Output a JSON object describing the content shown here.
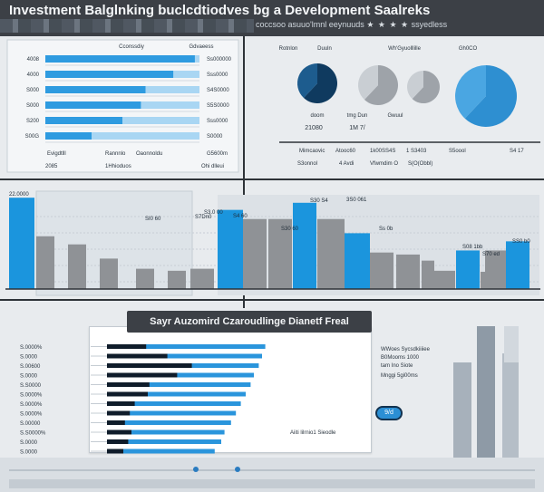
{
  "header": {
    "title": "Investment Balglnking buclcdtiodves bg a Development Saalreks",
    "subtitle": "coccsoo asuuo'lmnl eeynuuds",
    "subtitle_tail": "ssyedless",
    "stars": "★ ★ ★ ★"
  },
  "panel_a": {
    "col_headers": [
      "Cconssdiy",
      "Gdvaeess"
    ],
    "footer_labels": [
      "Evigdtlll",
      "Rannnlo",
      "Oaonnoldu",
      "G5600m"
    ],
    "footer_values": [
      "2085",
      "1Hhioduos",
      "Ohi dlleui"
    ]
  },
  "panel_b": {
    "col_headers": [
      "Rotnlon",
      "Duuln",
      "Wh'Gyuolllille",
      "Gh0CO"
    ],
    "pie_labels": [
      "doom",
      "tmg  Dun",
      "Gwuul"
    ],
    "pie_values": [
      "21080",
      "1M 7/"
    ],
    "row1": [
      "Mimcaovic",
      "Atooc60",
      "1k00SS4S",
      "1 S3403",
      "S5oool",
      "S4 17"
    ],
    "row2": [
      "S3onnol",
      "4 Avdi",
      "Vfwmdim  O",
      "S(O(Obbl)"
    ]
  },
  "panel_c": {
    "value_labels": [
      "22.0000",
      "SI0 60",
      "S3.0 00",
      "S4 60",
      "S30 60",
      "S30 S4",
      "3S0 061",
      "Ss 0b",
      "S08 1bb",
      "S70 ed",
      "SS0 b0",
      "S7Dn0"
    ]
  },
  "funnel": {
    "banner": "Sayr Auzomird Czaroudlinge Dianetf Freal",
    "row_labels": [
      "S.0000%",
      "S.0000",
      "S.00600",
      "S.0000",
      "S.S0000",
      "S.0000%",
      "S.0000%",
      "S.0000%",
      "S.00000",
      "S.S0000%",
      "S.0000",
      "S.0000"
    ],
    "annotations": [
      "WWoes Sycsdkiiiiee",
      "B0Mooms 1000",
      "tam  Ino  Siote",
      "Mnggi 5gi00ms",
      "Aiiti lilrnio1 Sieodle"
    ],
    "pill": "9/d"
  },
  "chart_data": [
    {
      "type": "bar",
      "orientation": "horizontal",
      "categories": [
        "4008",
        "4000",
        "S000",
        "S000",
        "S200",
        "S00G"
      ],
      "values": [
        0.97,
        0.83,
        0.65,
        0.62,
        0.5,
        0.3
      ],
      "value_labels": [
        "Ss000000",
        "Sss0000",
        "S4S0000",
        "S5S0000",
        "Sss0000",
        "S0000"
      ],
      "xlim": [
        0,
        1
      ],
      "grid": true,
      "colors": [
        "#2e9be0",
        "#a9d6f3"
      ]
    },
    {
      "type": "pie",
      "values": [
        62,
        38
      ],
      "categories": [
        "",
        ""
      ],
      "colors": [
        "#0f3a5f",
        "#2e8fd1",
        "#9ea3a9",
        "#c9ced3"
      ]
    },
    {
      "type": "bar",
      "categories": [
        "",
        "",
        "",
        "",
        "",
        "",
        "",
        "",
        "",
        "",
        "",
        "",
        "",
        "",
        "",
        "",
        "",
        "",
        "",
        "",
        ""
      ],
      "values": [
        0.9,
        0.52,
        0.44,
        0.3,
        0.2,
        0.18,
        0.2,
        0.78,
        0.69,
        0.69,
        0.85,
        0.69,
        0.55,
        0.36,
        0.34,
        0.28,
        0.18,
        0.38,
        0.17,
        0.38,
        0.47
      ],
      "colors": [
        "#1b95dd",
        "#8f9296"
      ],
      "ylim": [
        0,
        1
      ],
      "grid": true
    },
    {
      "type": "bar",
      "orientation": "horizontal",
      "categories": [
        "",
        "",
        "",
        "",
        "",
        "",
        "",
        "",
        "",
        "",
        "",
        ""
      ],
      "values": [
        0.97,
        0.95,
        0.93,
        0.9,
        0.88,
        0.85,
        0.82,
        0.79,
        0.76,
        0.72,
        0.7,
        0.66
      ],
      "dark_values": [
        0.24,
        0.37,
        0.52,
        0.43,
        0.26,
        0.25,
        0.17,
        0.14,
        0.11,
        0.15,
        0.13,
        0.1
      ],
      "xlim": [
        0,
        1
      ],
      "colors": [
        "#0f1c2a",
        "#2a95dc"
      ]
    }
  ]
}
